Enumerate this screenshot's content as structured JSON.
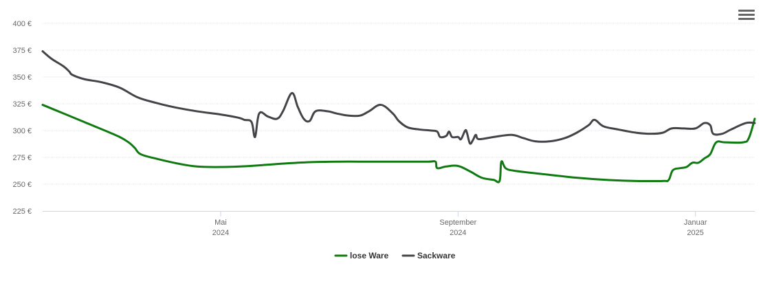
{
  "chart_data": {
    "type": "line",
    "title": "",
    "xlabel": "",
    "ylabel": "",
    "y_tick_labels": [
      "225 €",
      "250 €",
      "275 €",
      "300 €",
      "325 €",
      "350 €",
      "375 €",
      "400 €"
    ],
    "y_ticks": [
      225,
      250,
      275,
      300,
      325,
      350,
      375,
      400
    ],
    "ylim": [
      225,
      400
    ],
    "xlim": [
      0,
      12.0
    ],
    "x_ticks": [
      {
        "month": "Mai",
        "year": "2024",
        "x": 3.0
      },
      {
        "month": "September",
        "year": "2024",
        "x": 7.0
      },
      {
        "month": "Januar",
        "year": "2025",
        "x": 11.0
      }
    ],
    "series": [
      {
        "name": "lose Ware",
        "color": "#0f7a0f",
        "points": [
          [
            0.0,
            324
          ],
          [
            0.35,
            316
          ],
          [
            0.7,
            308
          ],
          [
            1.05,
            300
          ],
          [
            1.3,
            294
          ],
          [
            1.45,
            289
          ],
          [
            1.55,
            284
          ],
          [
            1.65,
            278
          ],
          [
            1.9,
            274
          ],
          [
            2.3,
            269
          ],
          [
            2.6,
            266.5
          ],
          [
            3.0,
            266
          ],
          [
            3.5,
            267
          ],
          [
            4.0,
            269
          ],
          [
            4.5,
            270.5
          ],
          [
            5.0,
            271
          ],
          [
            5.5,
            271
          ],
          [
            6.0,
            271
          ],
          [
            6.5,
            271
          ],
          [
            6.62,
            271
          ],
          [
            6.65,
            265
          ],
          [
            6.8,
            266.5
          ],
          [
            7.0,
            267
          ],
          [
            7.2,
            262
          ],
          [
            7.4,
            256
          ],
          [
            7.6,
            254
          ],
          [
            7.7,
            253
          ],
          [
            7.73,
            271
          ],
          [
            7.8,
            265
          ],
          [
            7.95,
            262.5
          ],
          [
            8.5,
            259
          ],
          [
            9.0,
            256
          ],
          [
            9.5,
            254
          ],
          [
            10.0,
            253
          ],
          [
            10.45,
            253
          ],
          [
            10.55,
            254
          ],
          [
            10.62,
            263
          ],
          [
            10.75,
            265
          ],
          [
            10.85,
            266
          ],
          [
            10.95,
            270
          ],
          [
            11.05,
            270
          ],
          [
            11.15,
            274
          ],
          [
            11.25,
            278
          ],
          [
            11.35,
            289
          ],
          [
            11.5,
            289
          ],
          [
            11.8,
            289
          ],
          [
            11.9,
            293
          ],
          [
            12.0,
            311
          ]
        ]
      },
      {
        "name": "Sackware",
        "color": "#434348",
        "points": [
          [
            0.0,
            374
          ],
          [
            0.15,
            367
          ],
          [
            0.35,
            360
          ],
          [
            0.45,
            355
          ],
          [
            0.5,
            352
          ],
          [
            0.7,
            348
          ],
          [
            1.0,
            345
          ],
          [
            1.3,
            340
          ],
          [
            1.6,
            331
          ],
          [
            1.9,
            326
          ],
          [
            2.2,
            322
          ],
          [
            2.6,
            318
          ],
          [
            3.0,
            315
          ],
          [
            3.3,
            312
          ],
          [
            3.4,
            310
          ],
          [
            3.52,
            308
          ],
          [
            3.58,
            294
          ],
          [
            3.65,
            316
          ],
          [
            3.8,
            313
          ],
          [
            3.95,
            311
          ],
          [
            4.05,
            318
          ],
          [
            4.2,
            335
          ],
          [
            4.3,
            322
          ],
          [
            4.4,
            311
          ],
          [
            4.5,
            309
          ],
          [
            4.6,
            318
          ],
          [
            4.8,
            318
          ],
          [
            4.95,
            316
          ],
          [
            5.15,
            314
          ],
          [
            5.35,
            314
          ],
          [
            5.5,
            318
          ],
          [
            5.7,
            324
          ],
          [
            5.9,
            316
          ],
          [
            6.0,
            309
          ],
          [
            6.15,
            303
          ],
          [
            6.35,
            301
          ],
          [
            6.55,
            300
          ],
          [
            6.65,
            299
          ],
          [
            6.7,
            294
          ],
          [
            6.8,
            295
          ],
          [
            6.85,
            299
          ],
          [
            6.9,
            294
          ],
          [
            7.0,
            294
          ],
          [
            7.05,
            292
          ],
          [
            7.12,
            300
          ],
          [
            7.15,
            298
          ],
          [
            7.2,
            288
          ],
          [
            7.25,
            291
          ],
          [
            7.3,
            296
          ],
          [
            7.35,
            292
          ],
          [
            7.6,
            294
          ],
          [
            7.9,
            296
          ],
          [
            8.1,
            293
          ],
          [
            8.3,
            290
          ],
          [
            8.55,
            290
          ],
          [
            8.8,
            293
          ],
          [
            9.0,
            298
          ],
          [
            9.2,
            305
          ],
          [
            9.3,
            310
          ],
          [
            9.45,
            304
          ],
          [
            9.7,
            301
          ],
          [
            10.0,
            298
          ],
          [
            10.25,
            297
          ],
          [
            10.45,
            298
          ],
          [
            10.6,
            302
          ],
          [
            10.8,
            302
          ],
          [
            11.0,
            302
          ],
          [
            11.15,
            307
          ],
          [
            11.25,
            305
          ],
          [
            11.3,
            297
          ],
          [
            11.45,
            297
          ],
          [
            11.6,
            301
          ],
          [
            11.85,
            307
          ],
          [
            12.0,
            307
          ]
        ]
      }
    ],
    "legend": {
      "position": "bottom-center"
    }
  }
}
